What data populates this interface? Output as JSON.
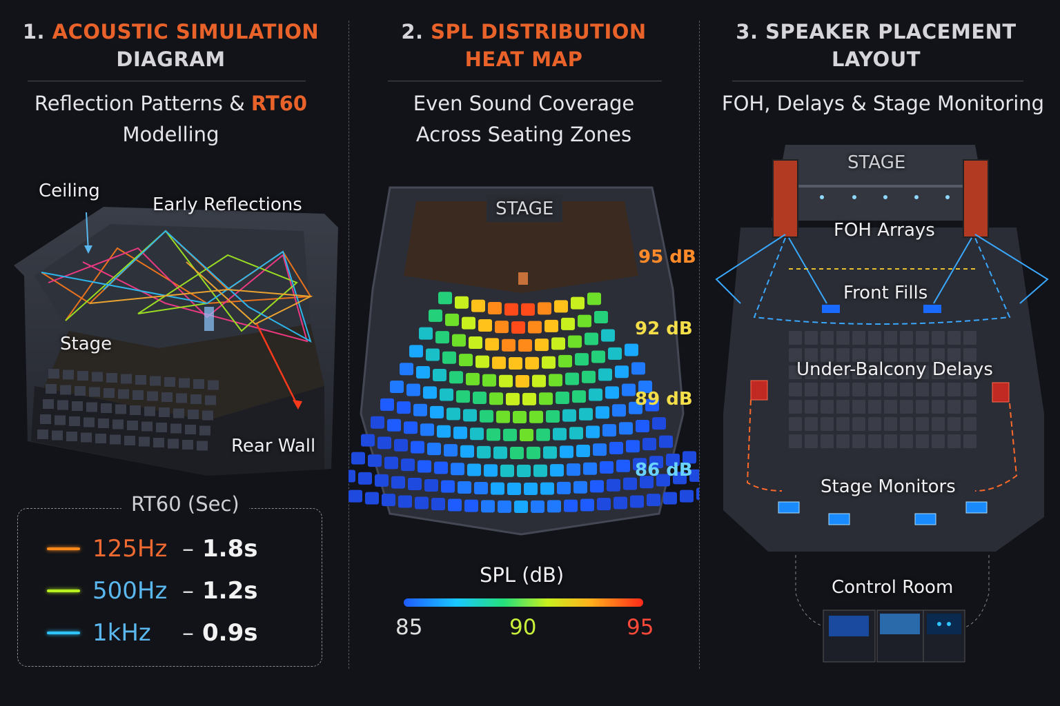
{
  "panel1": {
    "title_num": "1.",
    "title_hl": "ACOUSTIC SIMULATION",
    "title_rest": "DIAGRAM",
    "subtitle_a": "Reflection Patterns &",
    "subtitle_hl": "RT60",
    "subtitle_b": "Modelling",
    "labels": {
      "ceiling": "Ceiling",
      "early": "Early Reflections",
      "stage": "Stage",
      "rear": "Rear Wall"
    },
    "legend": {
      "title": "RT60  (Sec)",
      "rows": [
        {
          "freq": "125Hz",
          "dash": "–",
          "value": "1.8s",
          "color": "#ff8a1a",
          "text_color": "#ee6a30"
        },
        {
          "freq": "500Hz",
          "dash": "–",
          "value": "1.2s",
          "color": "#b8f020",
          "text_color": "#5ab8ee"
        },
        {
          "freq": "1kHz",
          "dash": "–",
          "value": "0.9s",
          "color": "#2ec4ff",
          "text_color": "#5ab8ee"
        }
      ]
    }
  },
  "panel2": {
    "title_num": "2.",
    "title_hl": "SPL DISTRIBUTION",
    "title_hl2": "HEAT MAP",
    "subtitle_a": "Even Sound Coverage",
    "subtitle_b": "Across Seating Zones",
    "stage": "STAGE",
    "zones": [
      {
        "label": "95 dB",
        "color": "#ff8a2a"
      },
      {
        "label": "92 dB",
        "color": "#f4de4a"
      },
      {
        "label": "89 dB",
        "color": "#f4de4a"
      },
      {
        "label": "86 dB",
        "color": "#6ad4ff"
      }
    ],
    "scale": {
      "title": "SPL (dB)",
      "min": "85",
      "mid": "90",
      "max": "95",
      "min_color": "#e0e0e0",
      "mid_color": "#c8f03a",
      "max_color": "#ff4a3a"
    }
  },
  "panel3": {
    "title_a": "3. SPEAKER PLACEMENT",
    "title_b": "LAYOUT",
    "subtitle": "FOH, Delays & Stage Monitoring",
    "labels": {
      "stage": "STAGE",
      "foh": "FOH Arrays",
      "fills": "Front Fills",
      "delays": "Under-Balcony Delays",
      "monitors": "Stage Monitors",
      "control": "Control Room"
    }
  }
}
